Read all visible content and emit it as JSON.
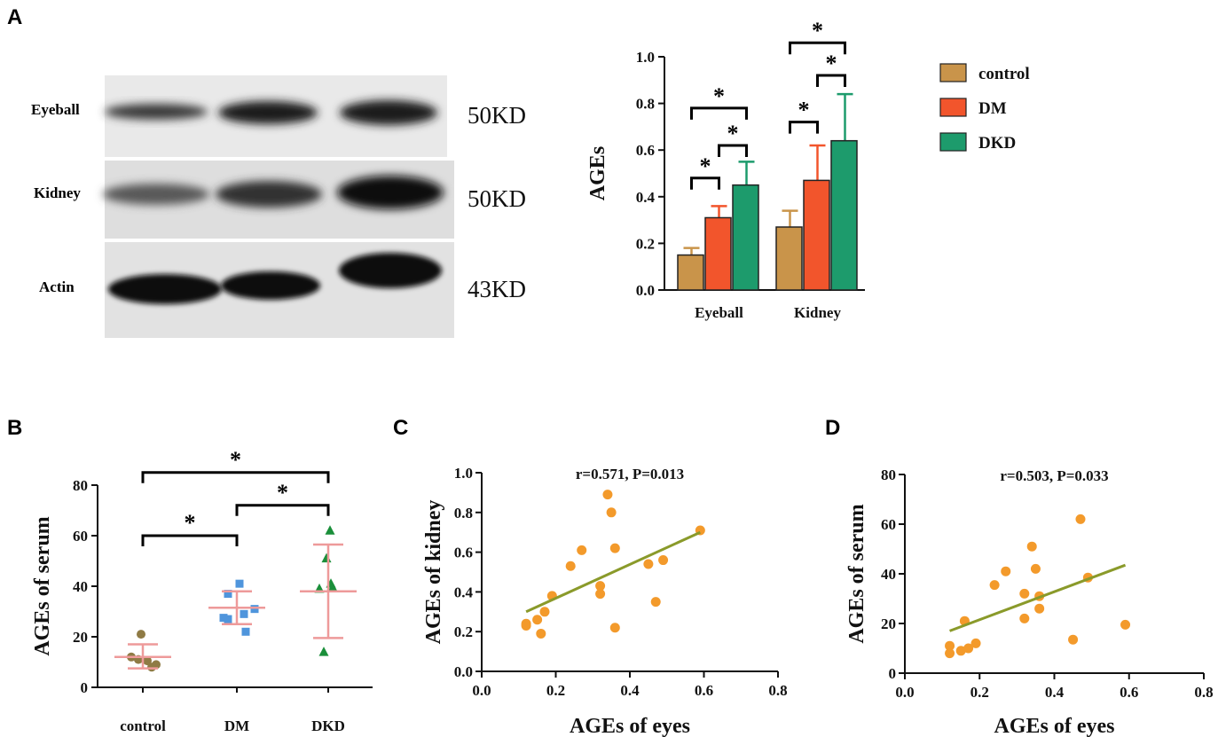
{
  "panels": {
    "A": "A",
    "B": "B",
    "C": "C",
    "D": "D"
  },
  "colors": {
    "control": "#c9944a",
    "DM": "#f2552c",
    "DKD": "#1d9b6c",
    "scatter": "#f39a2b",
    "trend": "#8a9a2a",
    "errB": "#ee9a9a"
  },
  "western_blot": {
    "rows": [
      {
        "label": "Eyeball",
        "size": "50KD"
      },
      {
        "label": "Kidney",
        "size": "50KD"
      },
      {
        "label": "Actin",
        "size": "43KD"
      }
    ]
  },
  "chart_data": [
    {
      "id": "A",
      "type": "bar",
      "ylabel": "AGEs",
      "ylim": [
        0,
        1.0
      ],
      "yticks": [
        0.0,
        0.2,
        0.4,
        0.6,
        0.8,
        1.0
      ],
      "ytick_labels": [
        "0.0",
        "0.2",
        "0.4",
        "0.6",
        "0.8",
        "1.0"
      ],
      "categories": [
        "Eyeball",
        "Kidney"
      ],
      "series": [
        {
          "name": "control",
          "values": [
            0.15,
            0.27
          ],
          "errors": [
            0.03,
            0.07
          ]
        },
        {
          "name": "DM",
          "values": [
            0.31,
            0.47
          ],
          "errors": [
            0.05,
            0.15
          ]
        },
        {
          "name": "DKD",
          "values": [
            0.45,
            0.64
          ],
          "errors": [
            0.1,
            0.2
          ]
        }
      ],
      "significance": [
        {
          "cat": 0,
          "from": 0,
          "to": 1,
          "y": 0.48,
          "label": "*"
        },
        {
          "cat": 0,
          "from": 1,
          "to": 2,
          "y": 0.62,
          "label": "*"
        },
        {
          "cat": 0,
          "from": 0,
          "to": 2,
          "y": 0.78,
          "label": "*"
        },
        {
          "cat": 1,
          "from": 0,
          "to": 1,
          "y": 0.72,
          "label": "*"
        },
        {
          "cat": 1,
          "from": 1,
          "to": 2,
          "y": 0.92,
          "label": "*"
        },
        {
          "cat": 1,
          "from": 0,
          "to": 2,
          "y": 1.06,
          "label": "*"
        }
      ],
      "legend": [
        "control",
        "DM",
        "DKD"
      ]
    },
    {
      "id": "B",
      "type": "scatter",
      "ylabel": "AGEs of serum",
      "ylim": [
        0,
        80
      ],
      "yticks": [
        0,
        20,
        40,
        60,
        80
      ],
      "ytick_labels": [
        "0",
        "20",
        "40",
        "60",
        "80"
      ],
      "categories": [
        "control",
        "DM",
        "DKD"
      ],
      "groups": [
        {
          "name": "control",
          "points": [
            [
              -0.02,
              21
            ],
            [
              -0.13,
              12
            ],
            [
              -0.05,
              11
            ],
            [
              0.05,
              10.5
            ],
            [
              0.15,
              9
            ],
            [
              0.1,
              8
            ]
          ],
          "mean": 12,
          "sd_low": 7.5,
          "sd_high": 17
        },
        {
          "name": "DM",
          "points": [
            [
              0.03,
              41
            ],
            [
              -0.1,
              37
            ],
            [
              0.2,
              31
            ],
            [
              -0.1,
              27
            ],
            [
              0.08,
              29
            ],
            [
              -0.15,
              27.5
            ],
            [
              0.1,
              22
            ]
          ],
          "mean": 31.5,
          "sd_low": 25,
          "sd_high": 38
        },
        {
          "name": "DKD",
          "points": [
            [
              0.02,
              62
            ],
            [
              -0.02,
              51
            ],
            [
              0.03,
              41
            ],
            [
              -0.1,
              39
            ],
            [
              0.05,
              39.5
            ],
            [
              -0.05,
              14
            ]
          ],
          "mean": 38,
          "sd_low": 19.5,
          "sd_high": 56.5
        }
      ],
      "significance": [
        {
          "from": 0,
          "to": 1,
          "y": 60,
          "label": "*"
        },
        {
          "from": 1,
          "to": 2,
          "y": 72,
          "label": "*"
        },
        {
          "from": 0,
          "to": 2,
          "y": 85,
          "label": "*"
        }
      ]
    },
    {
      "id": "C",
      "type": "scatter",
      "xlabel": "AGEs of eyes",
      "ylabel": "AGEs of kidney",
      "xlim": [
        0,
        0.8
      ],
      "ylim": [
        0,
        1.0
      ],
      "xticks": [
        0.0,
        0.2,
        0.4,
        0.6,
        0.8
      ],
      "xtick_labels": [
        "0.0",
        "0.2",
        "0.4",
        "0.6",
        "0.8"
      ],
      "yticks": [
        0.0,
        0.2,
        0.4,
        0.6,
        0.8,
        1.0
      ],
      "ytick_labels": [
        "0.0",
        "0.2",
        "0.4",
        "0.6",
        "0.8",
        "1.0"
      ],
      "annotation": "r=0.571, P=0.013",
      "points": [
        [
          0.12,
          0.23
        ],
        [
          0.12,
          0.24
        ],
        [
          0.15,
          0.26
        ],
        [
          0.16,
          0.19
        ],
        [
          0.17,
          0.3
        ],
        [
          0.19,
          0.38
        ],
        [
          0.24,
          0.53
        ],
        [
          0.27,
          0.61
        ],
        [
          0.32,
          0.39
        ],
        [
          0.32,
          0.43
        ],
        [
          0.34,
          0.89
        ],
        [
          0.35,
          0.8
        ],
        [
          0.36,
          0.62
        ],
        [
          0.36,
          0.22
        ],
        [
          0.45,
          0.54
        ],
        [
          0.47,
          0.35
        ],
        [
          0.49,
          0.56
        ],
        [
          0.59,
          0.71
        ]
      ],
      "trend": [
        [
          0.12,
          0.3
        ],
        [
          0.59,
          0.7
        ]
      ]
    },
    {
      "id": "D",
      "type": "scatter",
      "xlabel": "AGEs of eyes",
      "ylabel": "AGEs of serum",
      "xlim": [
        0,
        0.8
      ],
      "ylim": [
        0,
        80
      ],
      "xticks": [
        0.0,
        0.2,
        0.4,
        0.6,
        0.8
      ],
      "xtick_labels": [
        "0.0",
        "0.2",
        "0.4",
        "0.6",
        "0.8"
      ],
      "yticks": [
        0,
        20,
        40,
        60,
        80
      ],
      "ytick_labels": [
        "0",
        "20",
        "40",
        "60",
        "80"
      ],
      "annotation": "r=0.503, P=0.033",
      "points": [
        [
          0.12,
          11
        ],
        [
          0.12,
          8
        ],
        [
          0.15,
          9
        ],
        [
          0.16,
          21
        ],
        [
          0.17,
          10
        ],
        [
          0.19,
          12
        ],
        [
          0.24,
          35.5
        ],
        [
          0.27,
          41
        ],
        [
          0.32,
          32
        ],
        [
          0.32,
          22
        ],
        [
          0.34,
          51
        ],
        [
          0.35,
          42
        ],
        [
          0.36,
          31
        ],
        [
          0.36,
          26
        ],
        [
          0.45,
          13.5
        ],
        [
          0.47,
          62
        ],
        [
          0.49,
          38.5
        ],
        [
          0.59,
          19.5
        ]
      ],
      "trend": [
        [
          0.12,
          17
        ],
        [
          0.59,
          43.5
        ]
      ]
    }
  ]
}
